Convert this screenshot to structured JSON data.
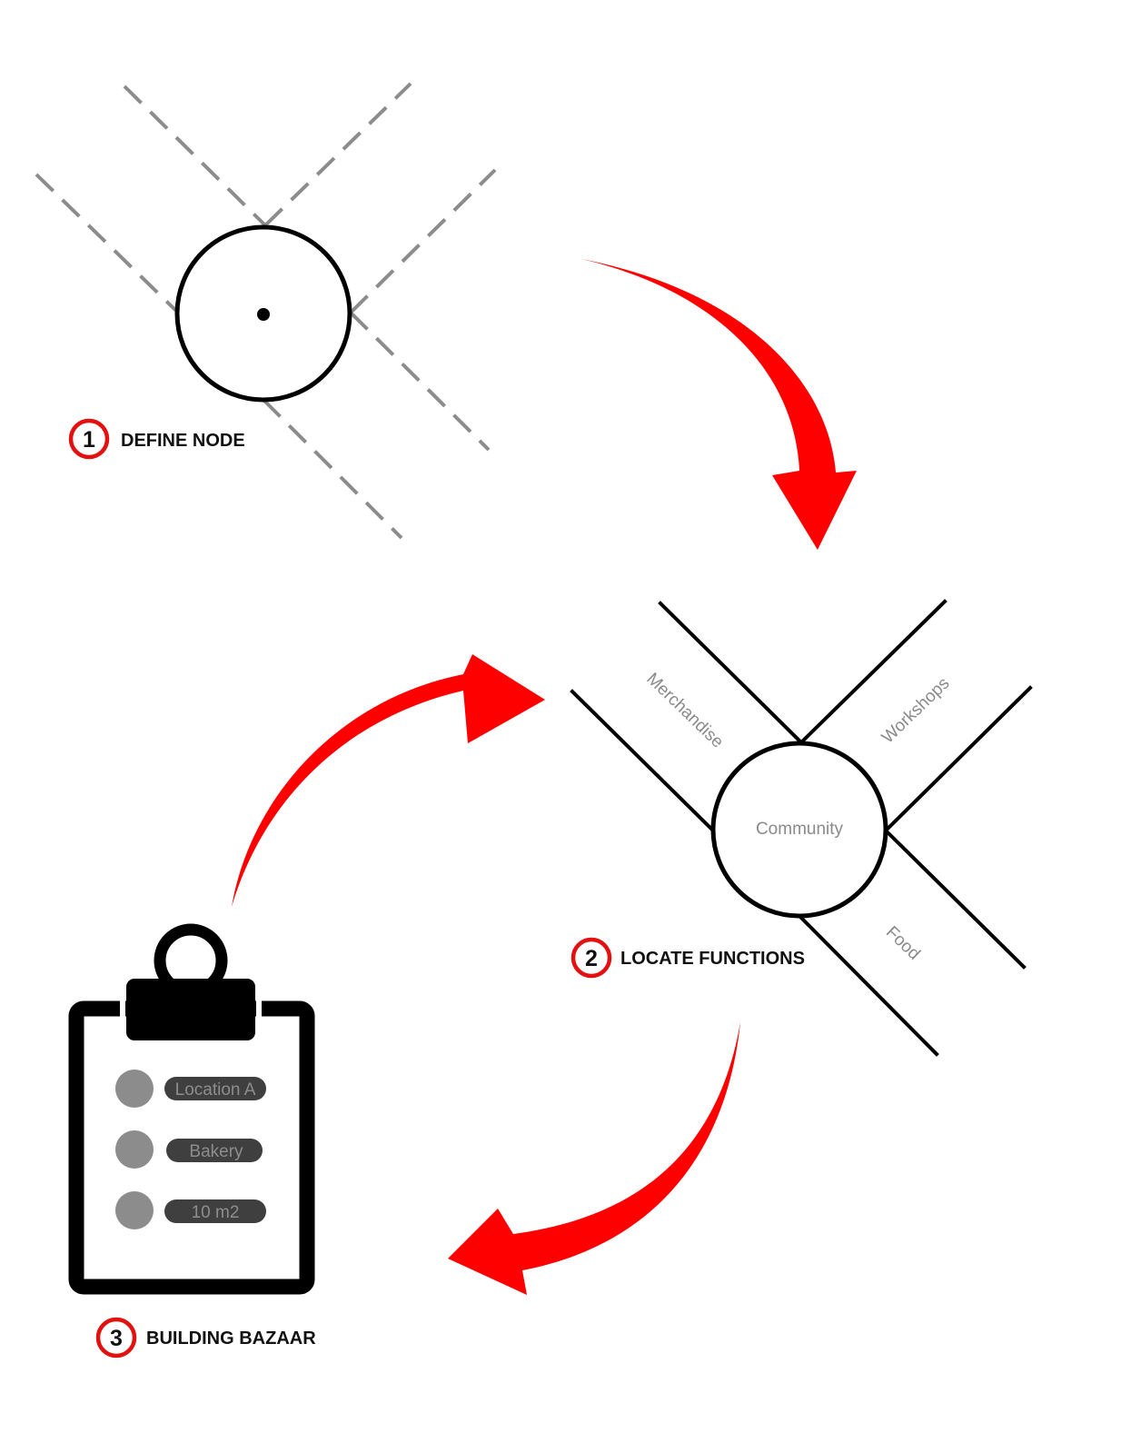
{
  "colors": {
    "accent": "#ff0000",
    "ink": "#000000",
    "dash": "#8c8c8c",
    "label_gray": "#8a8a8a",
    "pill": "#3f3f3f",
    "bullet": "#8c8c8c"
  },
  "steps": [
    {
      "number": "1",
      "label": "DEFINE NODE"
    },
    {
      "number": "2",
      "label": "LOCATE FUNCTIONS"
    },
    {
      "number": "3",
      "label": "BUILDING BAZAAR"
    }
  ],
  "node": {
    "center_label": "Community",
    "streets": [
      "Merchandise",
      "Workshops",
      "Food"
    ]
  },
  "clipboard": {
    "icon": "clipboard-icon",
    "items": [
      "Location A",
      "Bakery",
      "10 m2"
    ]
  },
  "arrows": [
    "curved-arrow-icon",
    "curved-arrow-icon",
    "curved-arrow-icon"
  ]
}
